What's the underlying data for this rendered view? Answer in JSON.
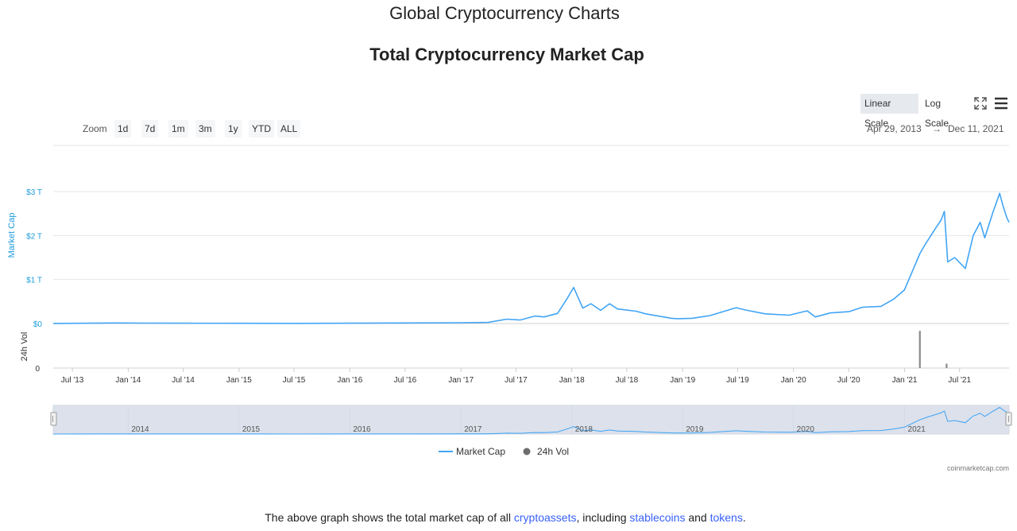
{
  "page": {
    "title": "Global Cryptocurrency Charts",
    "chart_title": "Total Cryptocurrency Market Cap"
  },
  "controls": {
    "scale_buttons": [
      "Linear Scale",
      "Log Scale"
    ],
    "active_scale": "Linear Scale",
    "zoom_label": "Zoom",
    "zoom_buttons": [
      "1d",
      "7d",
      "1m",
      "3m",
      "1y",
      "YTD",
      "ALL"
    ],
    "range_from": "Apr 29, 2013",
    "range_arrow": "→",
    "range_to": "Dec 11, 2021",
    "icons": [
      "fullscreen-icon",
      "menu-icon"
    ]
  },
  "colors": {
    "market_cap": "#42a5f5",
    "volume": "#8a8a8a",
    "axis_label": "#1e9cdc",
    "link": "#3861fb",
    "navigator_mask": "#d6dce8"
  },
  "chart_data": {
    "type": "line",
    "title": "Total Cryptocurrency Market Cap",
    "xlabel": "",
    "ylabel": "Market Cap",
    "ylabel_secondary": "24h Vol",
    "ylim": [
      0,
      3000000000000
    ],
    "xlim": [
      "2013-04-29",
      "2021-12-11"
    ],
    "y_ticks": [
      "$0",
      "$1 T",
      "$2 T",
      "$3 T"
    ],
    "vol_ticks": [
      "0"
    ],
    "x_ticks": [
      "Jul '13",
      "Jan '14",
      "Jul '14",
      "Jan '15",
      "Jul '15",
      "Jan '16",
      "Jul '16",
      "Jan '17",
      "Jul '17",
      "Jan '18",
      "Jul '18",
      "Jan '19",
      "Jul '19",
      "Jan '20",
      "Jul '20",
      "Jan '21",
      "Jul '21"
    ],
    "navigator_labels": [
      "2014",
      "2015",
      "2016",
      "2017",
      "2018",
      "2019",
      "2020",
      "2021"
    ],
    "legend": [
      "Market Cap",
      "24h Vol"
    ],
    "grid": true,
    "series": [
      {
        "name": "Market Cap",
        "unit": "USD trillions",
        "x": [
          "2013-04-29",
          "2013-11-30",
          "2014-03-01",
          "2014-07-01",
          "2015-01-01",
          "2015-07-01",
          "2016-01-01",
          "2016-07-01",
          "2017-01-01",
          "2017-04-01",
          "2017-06-01",
          "2017-07-15",
          "2017-09-01",
          "2017-10-01",
          "2017-11-15",
          "2017-12-15",
          "2018-01-07",
          "2018-02-06",
          "2018-03-05",
          "2018-04-06",
          "2018-05-05",
          "2018-06-01",
          "2018-08-01",
          "2018-09-01",
          "2018-11-25",
          "2018-12-15",
          "2019-02-01",
          "2019-04-01",
          "2019-06-26",
          "2019-08-01",
          "2019-09-30",
          "2019-12-18",
          "2020-02-15",
          "2020-03-13",
          "2020-05-01",
          "2020-07-01",
          "2020-08-15",
          "2020-10-15",
          "2020-11-25",
          "2020-12-31",
          "2021-01-15",
          "2021-02-21",
          "2021-03-10",
          "2021-04-16",
          "2021-05-01",
          "2021-05-12",
          "2021-05-23",
          "2021-06-15",
          "2021-07-20",
          "2021-08-15",
          "2021-09-07",
          "2021-09-22",
          "2021-10-20",
          "2021-11-10",
          "2021-11-20",
          "2021-12-04",
          "2021-12-11"
        ],
        "values": [
          0.0015,
          0.013,
          0.009,
          0.008,
          0.005,
          0.004,
          0.007,
          0.013,
          0.018,
          0.025,
          0.1,
          0.08,
          0.17,
          0.15,
          0.23,
          0.55,
          0.82,
          0.35,
          0.45,
          0.3,
          0.45,
          0.33,
          0.28,
          0.22,
          0.12,
          0.11,
          0.12,
          0.18,
          0.36,
          0.3,
          0.22,
          0.19,
          0.29,
          0.15,
          0.24,
          0.27,
          0.37,
          0.39,
          0.55,
          0.76,
          1.0,
          1.6,
          1.8,
          2.2,
          2.35,
          2.55,
          1.4,
          1.5,
          1.25,
          2.0,
          2.3,
          1.95,
          2.55,
          2.96,
          2.7,
          2.4,
          2.3
        ]
      },
      {
        "name": "24h Vol",
        "x": [
          "2021-02-20",
          "2021-05-19"
        ],
        "values": [
          0.85,
          0.1
        ]
      }
    ]
  },
  "footer": {
    "credits": "coinmarketcap.com",
    "caption_pre": "The above graph shows the total market cap of all ",
    "caption_link1": "cryptoassets",
    "caption_mid1": ", including ",
    "caption_link2": "stablecoins",
    "caption_mid2": " and ",
    "caption_link3": "tokens",
    "caption_post": "."
  }
}
